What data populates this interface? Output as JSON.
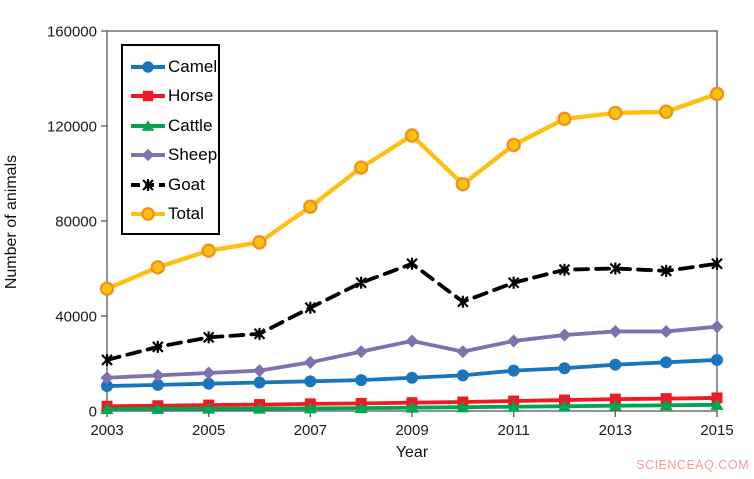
{
  "watermark": "SCIENCEAQ.COM",
  "axes": {
    "xlabel": "Year",
    "ylabel": "Number of animals"
  },
  "chart_data": {
    "type": "line",
    "title": "",
    "xlabel": "Year",
    "ylabel": "Number of animals",
    "grid": false,
    "legend_position": "upper-left",
    "xlim": [
      2003,
      2015
    ],
    "ylim": [
      0,
      160000
    ],
    "x_ticks": [
      2003,
      2005,
      2007,
      2009,
      2011,
      2013,
      2015
    ],
    "y_ticks": [
      0,
      40000,
      80000,
      120000,
      160000
    ],
    "x": [
      2003,
      2004,
      2005,
      2006,
      2007,
      2008,
      2009,
      2010,
      2011,
      2012,
      2013,
      2014,
      2015
    ],
    "series": [
      {
        "name": "Camel",
        "color": "#1b75bc",
        "marker": "circle",
        "line": "solid",
        "values": [
          10500,
          11000,
          11500,
          12000,
          12500,
          13000,
          14000,
          15000,
          17000,
          18000,
          19500,
          20500,
          21500
        ]
      },
      {
        "name": "Horse",
        "color": "#ed1c24",
        "marker": "square",
        "line": "solid",
        "values": [
          2000,
          2200,
          2500,
          2700,
          3000,
          3200,
          3500,
          3800,
          4200,
          4600,
          5000,
          5200,
          5500
        ]
      },
      {
        "name": "Cattle",
        "color": "#00a551",
        "marker": "triangle",
        "line": "solid",
        "values": [
          800,
          900,
          1000,
          1000,
          1100,
          1200,
          1400,
          1600,
          1800,
          2000,
          2200,
          2400,
          2600
        ]
      },
      {
        "name": "Sheep",
        "color": "#8070ad",
        "marker": "diamond",
        "line": "solid",
        "values": [
          14000,
          15000,
          16000,
          17000,
          20500,
          25000,
          29500,
          25000,
          29500,
          32000,
          33500,
          33500,
          35500
        ]
      },
      {
        "name": "Goat",
        "color": "#000000",
        "marker": "x",
        "line": "dashed",
        "values": [
          21500,
          27000,
          31000,
          32500,
          43500,
          54000,
          62000,
          46000,
          54000,
          59500,
          60000,
          59000,
          62000
        ]
      },
      {
        "name": "Total",
        "color": "#fdc010",
        "marker": "circle-outlined",
        "marker_fill": "#ffc20e",
        "marker_stroke": "#f0931b",
        "line": "solid",
        "values": [
          51500,
          60500,
          67500,
          71000,
          86000,
          102500,
          116000,
          95500,
          112000,
          123000,
          125500,
          126000,
          133500
        ]
      }
    ]
  }
}
